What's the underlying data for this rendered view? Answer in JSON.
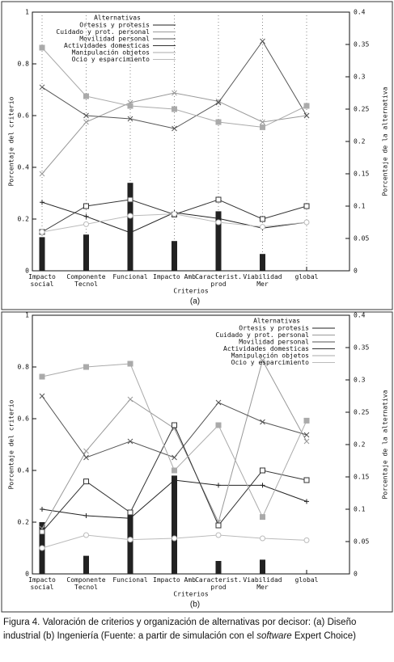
{
  "chart_data": [
    {
      "type": "combo",
      "panel_label": "(a)",
      "xlabel": "Criterios",
      "ylabel": "Porcentaje del criterio",
      "y2label": "Porcentaje de la alternativa",
      "categories": [
        "Impacto social",
        "Componente Tecnol",
        "Funcional",
        "Impacto Amb",
        "Caracterist. prod",
        "Viabilidad Mer",
        "global"
      ],
      "values": [
        0.13,
        0.14,
        0.34,
        0.115,
        0.23,
        0.065,
        null
      ],
      "color": "#222222",
      "ylim": [
        0,
        1
      ],
      "yticks": [
        0,
        0.2,
        0.4,
        0.6,
        0.8,
        1
      ],
      "y2lim": [
        0,
        0.4
      ],
      "y2ticks": [
        0,
        0.05,
        0.1,
        0.15,
        0.2,
        0.25,
        0.3,
        0.35,
        0.4
      ],
      "grid": true,
      "legend": "upper left",
      "legend_title": "Alternativas",
      "series": [
        {
          "name": "Ortesis y protesis",
          "color": "#222222",
          "marker": "plus",
          "axis": "y2",
          "values": [
            0.106,
            0.084,
            0.059,
            0.09,
            0.081,
            0.066,
            0.075
          ]
        },
        {
          "name": "Cuidado y prot. personal",
          "color": "#999999",
          "marker": "x",
          "axis": "y2",
          "values": [
            0.15,
            0.23,
            0.26,
            0.275,
            0.262,
            0.23,
            0.24
          ]
        },
        {
          "name": "Movilidad personal",
          "color": "#555555",
          "marker": "x",
          "axis": "y2",
          "values": [
            0.284,
            0.24,
            0.235,
            0.22,
            0.26,
            0.355,
            0.24
          ]
        },
        {
          "name": "Actividades domesticas",
          "color": "#333333",
          "marker": "square-open",
          "axis": "y2",
          "values": [
            0.06,
            0.1,
            0.11,
            0.087,
            0.11,
            0.08,
            0.1
          ]
        },
        {
          "name": "Manipulación objetos",
          "color": "#aaaaaa",
          "marker": "square-filled",
          "axis": "y2",
          "values": [
            0.345,
            0.27,
            0.255,
            0.25,
            0.23,
            0.222,
            0.255
          ]
        },
        {
          "name": "Ocio y esparcimiento",
          "color": "#bbbbbb",
          "marker": "circle-open",
          "axis": "y2",
          "values": [
            0.06,
            0.072,
            0.085,
            0.088,
            0.075,
            0.068,
            0.075
          ]
        }
      ]
    },
    {
      "type": "combo",
      "panel_label": "(b)",
      "xlabel": "Criterios",
      "ylabel": "Porcentaje del criterio",
      "y2label": "Porcentaje de la alternativa",
      "categories": [
        "Impacto social",
        "Componente Tecnol",
        "Funcional",
        "Impacto Amb",
        "Caracterist. prod",
        "Viabilidad Mer",
        "global"
      ],
      "values": [
        0.2,
        0.07,
        0.24,
        0.38,
        0.05,
        0.055,
        null
      ],
      "color": "#222222",
      "ylim": [
        0,
        1
      ],
      "yticks": [
        0,
        0.2,
        0.4,
        0.6,
        0.8,
        1
      ],
      "y2lim": [
        0,
        0.4
      ],
      "y2ticks": [
        0,
        0.05,
        0.1,
        0.15,
        0.2,
        0.25,
        0.3,
        0.35,
        0.4
      ],
      "grid": false,
      "legend": "upper right",
      "legend_title": "Alternativas",
      "series": [
        {
          "name": "Ortesis y protesis",
          "color": "#222222",
          "marker": "plus",
          "axis": "y2",
          "values": [
            0.1,
            0.09,
            0.086,
            0.145,
            0.137,
            0.137,
            0.112
          ]
        },
        {
          "name": "Cuidado y prot. personal",
          "color": "#999999",
          "marker": "x",
          "axis": "y2",
          "values": [
            0.07,
            0.19,
            0.27,
            0.225,
            0.08,
            0.33,
            0.205
          ]
        },
        {
          "name": "Movilidad personal",
          "color": "#555555",
          "marker": "x",
          "axis": "y2",
          "values": [
            0.275,
            0.18,
            0.205,
            0.18,
            0.265,
            0.235,
            0.215
          ]
        },
        {
          "name": "Actividades domesticas",
          "color": "#333333",
          "marker": "square-open",
          "axis": "y2",
          "values": [
            0.065,
            0.143,
            0.095,
            0.23,
            0.075,
            0.16,
            0.145
          ]
        },
        {
          "name": "Manipulación objetos",
          "color": "#aaaaaa",
          "marker": "square-filled",
          "axis": "y2",
          "values": [
            0.305,
            0.32,
            0.325,
            0.16,
            0.23,
            0.088,
            0.237
          ]
        },
        {
          "name": "Ocio y esparcimiento",
          "color": "#bbbbbb",
          "marker": "circle-open",
          "axis": "y2",
          "values": [
            0.04,
            0.06,
            0.053,
            0.055,
            0.06,
            0.055,
            0.052
          ]
        }
      ]
    }
  ],
  "caption": {
    "text": "Figura 4. Valoración de criterios y organización de alternativas por decisor: (a) Diseño industrial (b) Ingeniería (Fuente: a partir de simulación con el ",
    "emphasis": "software",
    "end": " Expert Choice)"
  }
}
